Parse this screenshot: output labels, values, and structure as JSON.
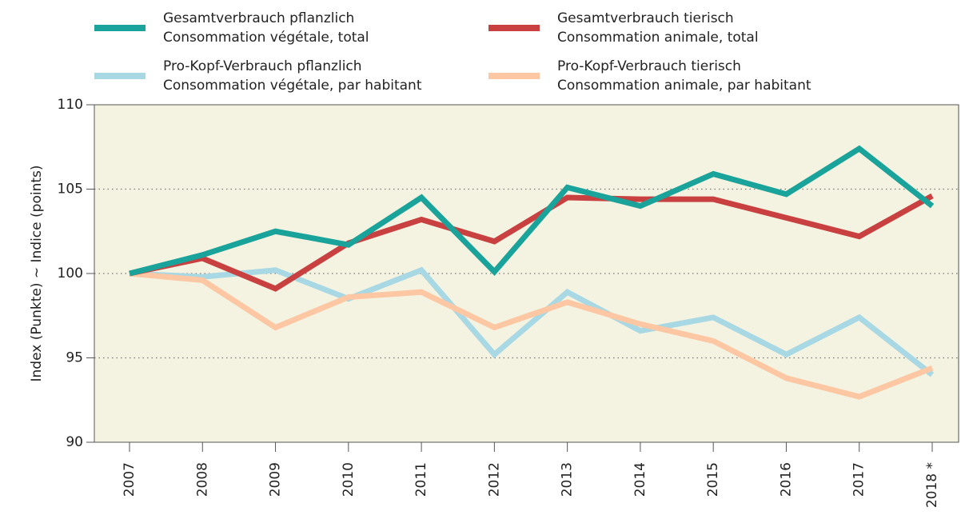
{
  "chart_data": {
    "type": "line",
    "y_label": "Index (Punkte)  ~  Indice (points)",
    "categories": [
      "2007",
      "2008",
      "2009",
      "2010",
      "2011",
      "2012",
      "2013",
      "2014",
      "2015",
      "2016",
      "2017",
      "2018 *"
    ],
    "series": [
      {
        "name": [
          "Gesamtverbrauch pflanzlich",
          "Consommation végétale, total"
        ],
        "color": "#1aa39a",
        "values": [
          100,
          101.1,
          102.5,
          101.7,
          104.5,
          100.1,
          105.1,
          104.0,
          105.9,
          104.7,
          107.4,
          104.0
        ]
      },
      {
        "name": [
          "Gesamtverbrauch tierisch",
          "Consommation animale, total"
        ],
        "color": "#c94040",
        "values": [
          100,
          100.9,
          99.1,
          101.8,
          103.2,
          101.9,
          104.5,
          104.4,
          104.4,
          103.3,
          102.2,
          104.6
        ]
      },
      {
        "name": [
          "Pro-Kopf-Verbrauch pflanzlich",
          "Consommation végétale, par habitant"
        ],
        "color": "#a8d8e4",
        "values": [
          100,
          99.8,
          100.2,
          98.5,
          100.2,
          95.2,
          98.9,
          96.6,
          97.4,
          95.2,
          97.4,
          94.0
        ]
      },
      {
        "name": [
          "Pro-Kopf-Verbrauch tierisch",
          "Consommation animale, par habitant"
        ],
        "color": "#fcc7a2",
        "values": [
          100,
          99.6,
          96.8,
          98.6,
          98.9,
          96.8,
          98.3,
          97.0,
          96.0,
          93.8,
          92.7,
          94.4
        ]
      }
    ],
    "ylim": [
      90,
      110
    ],
    "yticks": [
      90,
      95,
      100,
      105,
      110
    ],
    "grid": true
  }
}
